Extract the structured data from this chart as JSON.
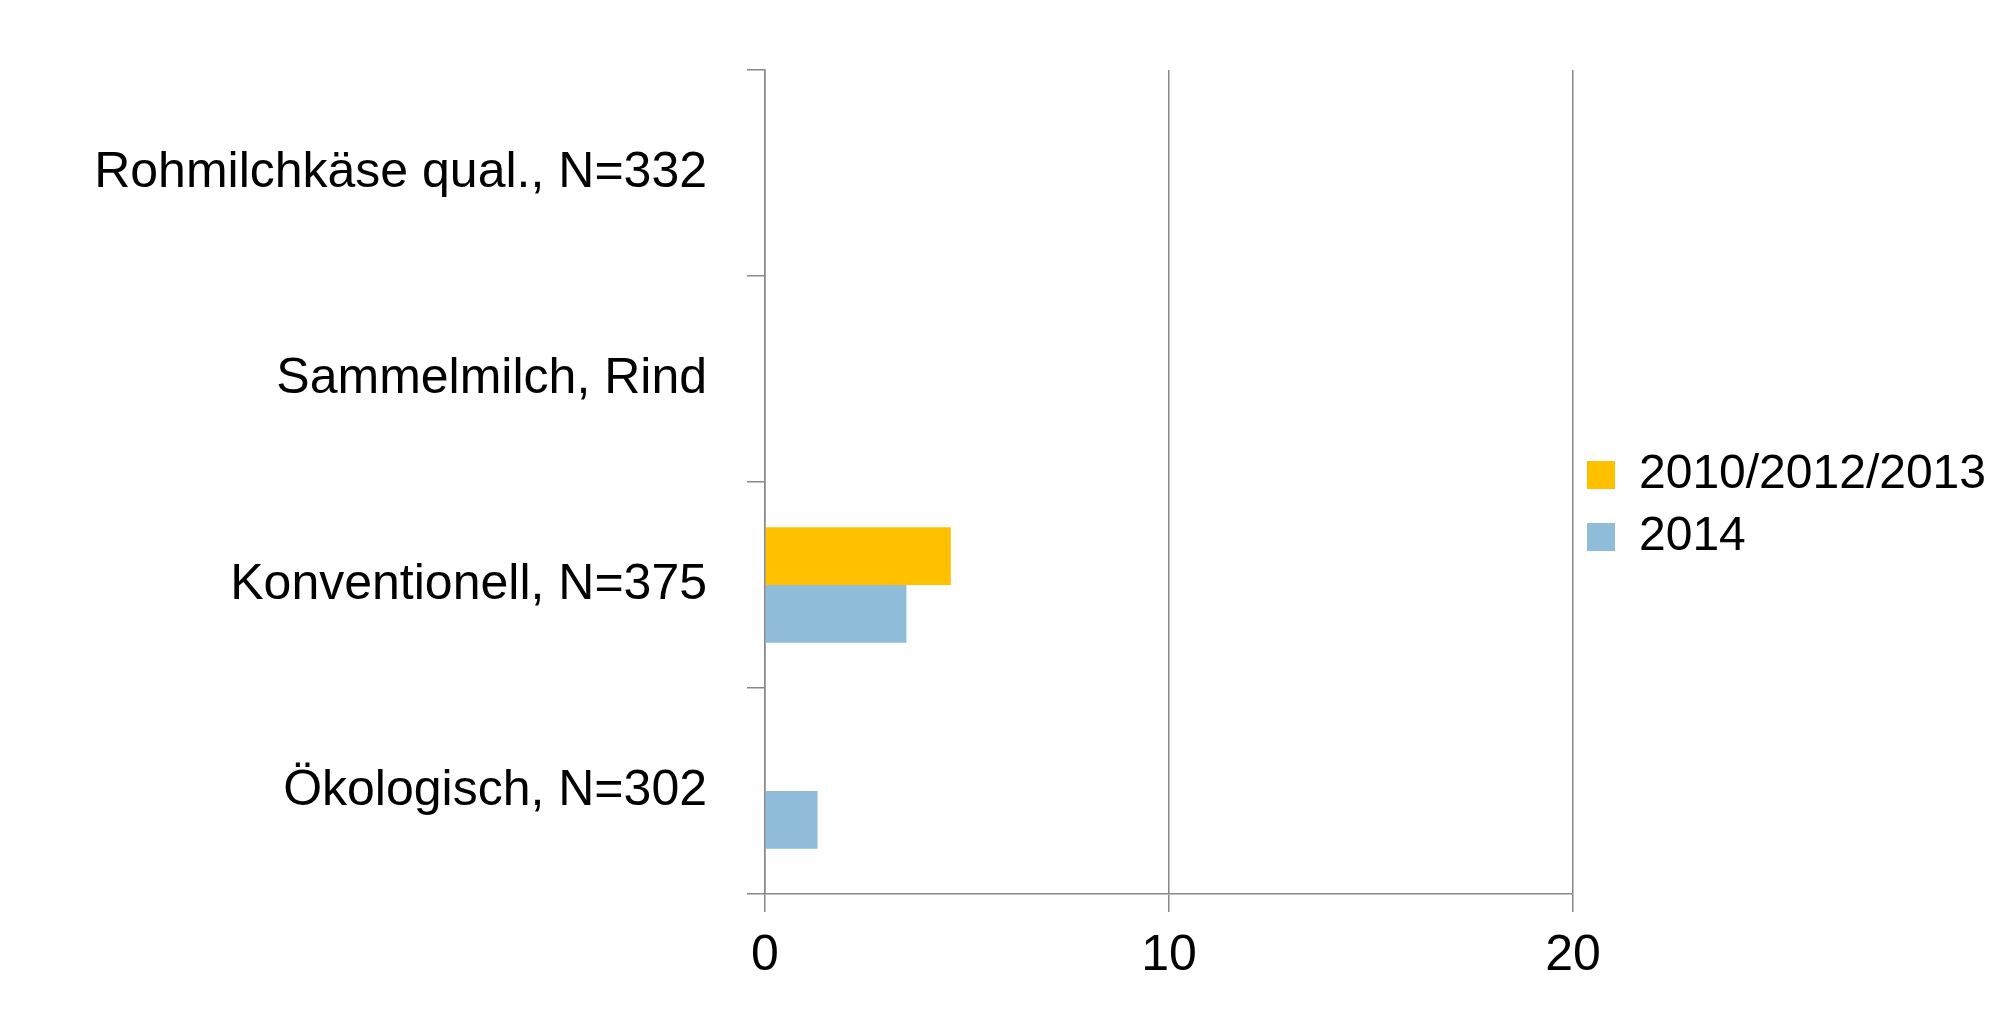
{
  "chart_data": {
    "type": "bar",
    "orientation": "horizontal",
    "categories": [
      "Rohmilchkäse qual., N=332",
      "Sammelmilch, Rind",
      "Konventionell, N=375",
      "Ökologisch, N=302"
    ],
    "series": [
      {
        "name": "2010/2012/2013",
        "color": "#ffc000",
        "values": [
          null,
          null,
          4.6,
          null
        ]
      },
      {
        "name": "2014",
        "color": "#8fbcd9",
        "values": [
          null,
          null,
          3.5,
          1.3
        ]
      }
    ],
    "xlim": [
      0,
      20
    ],
    "xticks": [
      0,
      10,
      20
    ],
    "grid": "x",
    "legend": "right"
  }
}
